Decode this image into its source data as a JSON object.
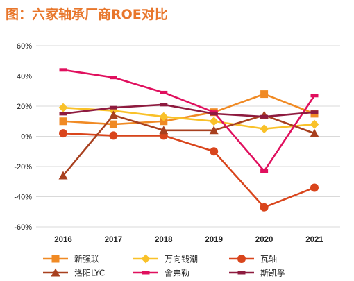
{
  "title": "图：六家轴承厂商ROE对比",
  "chart_data": {
    "type": "line",
    "title": "图：六家轴承厂商ROE对比",
    "xlabel": "",
    "ylabel": "",
    "categories": [
      "2016",
      "2017",
      "2018",
      "2019",
      "2020",
      "2021"
    ],
    "ylim": [
      -60,
      60
    ],
    "yticks": [
      60,
      40,
      20,
      0,
      -20,
      -40,
      -60
    ],
    "ytick_labels": [
      "60%",
      "40%",
      "20%",
      "0%",
      "-20%",
      "-40%",
      "-60%"
    ],
    "grid": true,
    "legend_position": "bottom",
    "series": [
      {
        "name": "新强联",
        "color": "#F08A24",
        "marker": "square",
        "values": [
          10,
          8,
          10,
          16,
          28,
          15
        ]
      },
      {
        "name": "万向钱潮",
        "color": "#F9C129",
        "marker": "diamond",
        "values": [
          19,
          17,
          13,
          10,
          5,
          8
        ]
      },
      {
        "name": "瓦轴",
        "color": "#D9451C",
        "marker": "circle",
        "values": [
          2,
          0.5,
          0.5,
          -10,
          -47,
          -34
        ]
      },
      {
        "name": "洛阳LYC",
        "color": "#A8401F",
        "marker": "triangle",
        "values": [
          -26,
          14,
          4,
          4,
          14,
          2
        ]
      },
      {
        "name": "舍弗勒",
        "color": "#E0105E",
        "marker": "dash",
        "values": [
          44,
          39,
          29,
          16,
          -23,
          27
        ]
      },
      {
        "name": "斯凯孚",
        "color": "#8E1B3F",
        "marker": "dash",
        "values": [
          15,
          19,
          21,
          15,
          13,
          16
        ]
      }
    ]
  }
}
